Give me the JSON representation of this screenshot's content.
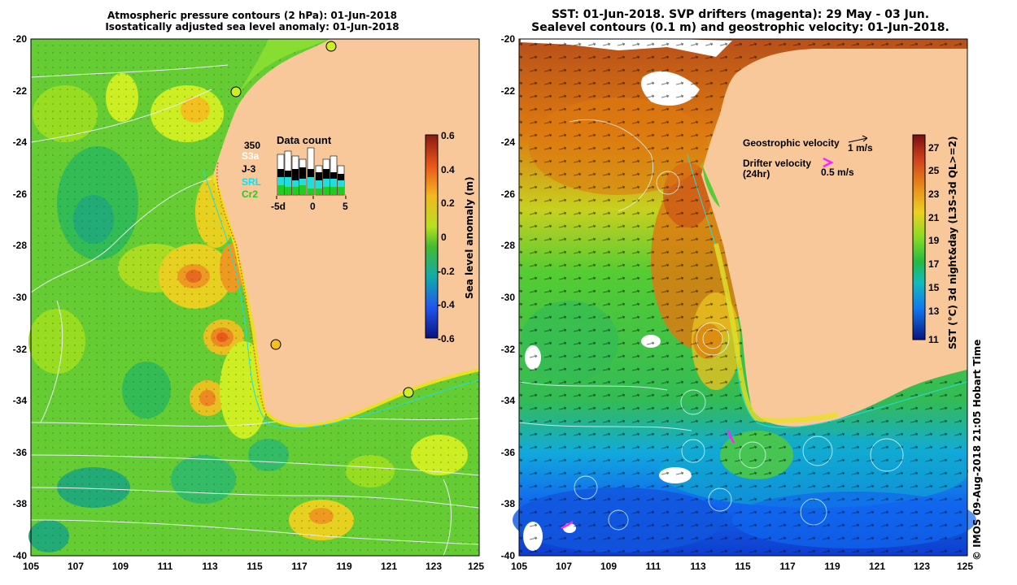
{
  "left_panel": {
    "title_line1": "Atmospheric pressure contours (2 hPa): 01-Jun-2018",
    "title_line2": "Isostatically adjusted sea level anomaly: 01-Jun-2018",
    "x_ticks": [
      "105",
      "107",
      "109",
      "111",
      "113",
      "115",
      "117",
      "119",
      "121",
      "123",
      "125"
    ],
    "y_ticks": [
      "-20",
      "-22",
      "-24",
      "-26",
      "-28",
      "-30",
      "-32",
      "-34",
      "-36",
      "-38",
      "-40"
    ],
    "colorbar": {
      "label": "Sea level anomaly (m)",
      "ticks": [
        "0.6",
        "0.4",
        "0.2",
        "0",
        "-0.2",
        "-0.4",
        "-0.6"
      ]
    },
    "data_count": {
      "title": "Data count",
      "max_label": "350",
      "series": [
        {
          "name": "S3a",
          "color": "#ffffff"
        },
        {
          "name": "J-3",
          "color": "#000000"
        },
        {
          "name": "SRL",
          "color": "#00e5ff"
        },
        {
          "name": "Cr2",
          "color": "#22cc22"
        }
      ],
      "x_ticks": [
        "-5d",
        "0",
        "5"
      ]
    }
  },
  "right_panel": {
    "title_line1": "SST: 01-Jun-2018. SVP drifters (magenta): 29 May - 03 Jun.",
    "title_line2": "Sealevel contours (0.1 m) and geostrophic velocity: 01-Jun-2018.",
    "x_ticks": [
      "105",
      "107",
      "109",
      "111",
      "113",
      "115",
      "117",
      "119",
      "121",
      "123",
      "125"
    ],
    "y_ticks": [
      "-20",
      "-22",
      "-24",
      "-26",
      "-28",
      "-30",
      "-32",
      "-34",
      "-36",
      "-38",
      "-40"
    ],
    "legend": {
      "geo_label": "Geostrophic velocity",
      "geo_scale": "1 m/s",
      "drifter_label_1": "Drifter velocity",
      "drifter_label_2": "(24hr)",
      "drifter_scale": "0.5 m/s"
    },
    "colorbar": {
      "label": "SST (°C) 3d night&day (L3S-3d QL>=2)",
      "ticks": [
        "27",
        "25",
        "23",
        "21",
        "19",
        "17",
        "15",
        "13",
        "11"
      ]
    }
  },
  "credit": "© IMOS 09-Aug-2018 21:05 Hobart Time",
  "colors": {
    "land": "#f8c89a",
    "sla_green": "#66cc33",
    "sla_yellow": "#ccee22",
    "sla_orange": "#ee8822",
    "sst_warm": "#dd7a10",
    "sst_mid": "#55cc33",
    "sst_cool": "#1166ee",
    "drifter": "#ff22ff"
  }
}
